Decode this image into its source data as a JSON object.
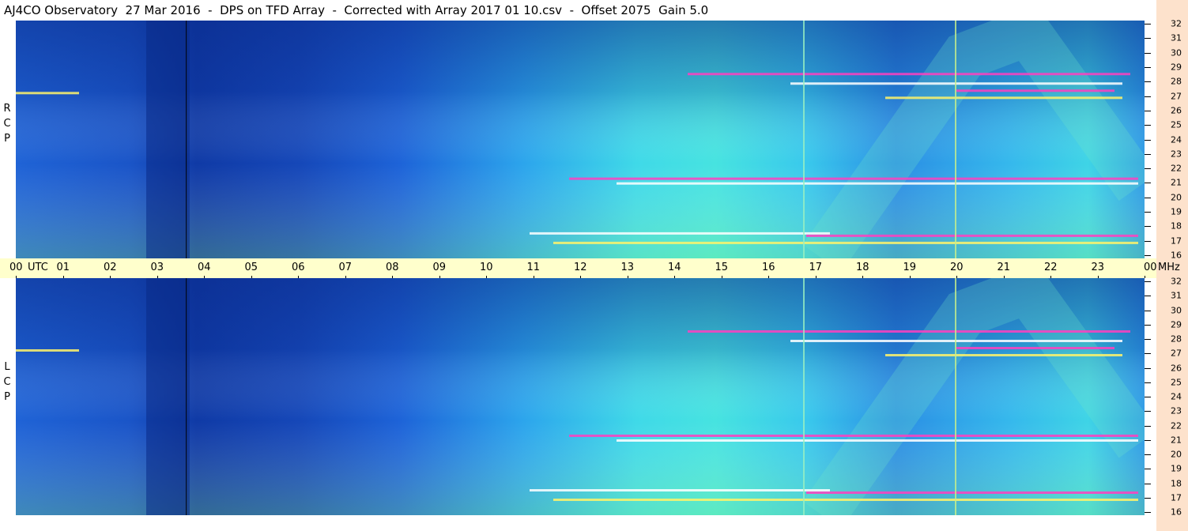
{
  "title": "AJ4CO Observatory  27 Mar 2016  -  DPS on TFD Array  -  Corrected with Array 2017 01 10.csv  -  Offset 2075  Gain 5.0",
  "colors": {
    "freq_band": "#fde2cc",
    "time_axis": "#ffffcc"
  },
  "chart_data": [
    {
      "type": "heatmap",
      "panel": "RCP",
      "side_label": [
        "R",
        "C",
        "P"
      ],
      "x_ticks": [
        "00",
        "01",
        "02",
        "03",
        "04",
        "05",
        "06",
        "07",
        "08",
        "09",
        "10",
        "11",
        "12",
        "13",
        "14",
        "15",
        "16",
        "17",
        "18",
        "19",
        "20",
        "21",
        "22",
        "23",
        "00"
      ],
      "x_unit": "UTC",
      "y_ticks": [
        32,
        31,
        30,
        29,
        28,
        27,
        26,
        25,
        24,
        23,
        22,
        21,
        20,
        19,
        18,
        17,
        16
      ],
      "y_unit": "MHz",
      "xlim": [
        0,
        24
      ],
      "ylim": [
        16,
        32
      ]
    },
    {
      "type": "heatmap",
      "panel": "LCP",
      "side_label": [
        "L",
        "C",
        "P"
      ],
      "x_ticks": [
        "00",
        "01",
        "02",
        "03",
        "04",
        "05",
        "06",
        "07",
        "08",
        "09",
        "10",
        "11",
        "12",
        "13",
        "14",
        "15",
        "16",
        "17",
        "18",
        "19",
        "20",
        "21",
        "22",
        "23",
        "00"
      ],
      "x_unit": "UTC",
      "y_ticks": [
        32,
        31,
        30,
        29,
        28,
        27,
        26,
        25,
        24,
        23,
        22,
        21,
        20,
        19,
        18,
        17,
        16
      ],
      "y_unit": "MHz",
      "xlim": [
        0,
        24
      ],
      "ylim": [
        16,
        32
      ]
    }
  ]
}
